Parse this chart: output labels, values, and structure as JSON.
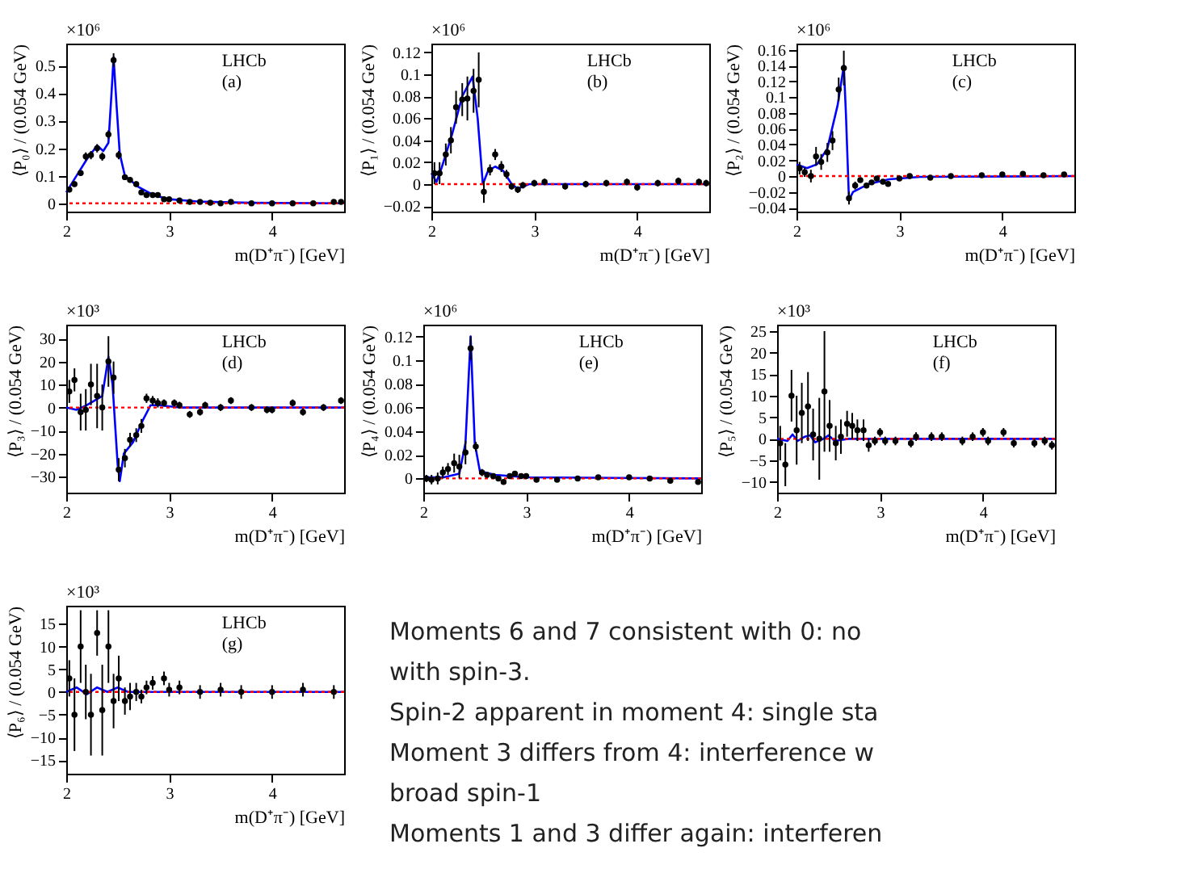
{
  "chart_data": [
    {
      "type": "scatter",
      "xlabel": "m(D⁺π⁻) [GeV]",
      "ylabel": "⟨P₀⟩ / (0.054 GeV)",
      "xlim": [
        2,
        4.7
      ],
      "xticks": [
        2,
        3,
        4
      ],
      "ylim": [
        -0.03,
        0.58
      ],
      "yticks": [
        0,
        0.1,
        0.2,
        0.3,
        0.4,
        0.5
      ],
      "annotations": [
        "×10⁶",
        "LHCb",
        "(a)"
      ],
      "ref_lines": [
        {
          "axis": "y",
          "value": 0,
          "color": "#ff0000",
          "line_style": "dotted"
        }
      ],
      "series": [
        {
          "type": "scatter",
          "marker": "circle",
          "color": "#000000",
          "x": [
            2.03,
            2.08,
            2.14,
            2.19,
            2.24,
            2.3,
            2.35,
            2.41,
            2.46,
            2.51,
            2.57,
            2.62,
            2.68,
            2.73,
            2.78,
            2.84,
            2.89,
            2.95,
            3.0,
            3.1,
            3.2,
            3.3,
            3.4,
            3.5,
            3.6,
            3.8,
            4.0,
            4.2,
            4.4,
            4.6,
            4.67
          ],
          "values": [
            0.05,
            0.07,
            0.11,
            0.17,
            0.175,
            0.2,
            0.17,
            0.25,
            0.52,
            0.175,
            0.095,
            0.085,
            0.07,
            0.04,
            0.03,
            0.03,
            0.03,
            0.015,
            0.015,
            0.01,
            0.005,
            0.005,
            0.002,
            0,
            0.005,
            0,
            0,
            0,
            0,
            0.005,
            0.005
          ],
          "errors": [
            0.01,
            0.01,
            0.01,
            0.015,
            0.015,
            0.015,
            0.015,
            0.015,
            0.025,
            0.015,
            0.01,
            0.01,
            0.01,
            0.01,
            0.005,
            0.005,
            0.005,
            0.005,
            0.005,
            0.005,
            0.005,
            0.005,
            0.005,
            0.005,
            0.005,
            0.005,
            0.005,
            0.005,
            0.005,
            0.005,
            0.005
          ]
        },
        {
          "type": "line",
          "color": "#0000ff",
          "x": [
            2.0,
            2.1,
            2.2,
            2.3,
            2.36,
            2.41,
            2.44,
            2.46,
            2.49,
            2.52,
            2.57,
            2.7,
            2.85,
            3.0,
            3.3,
            3.8,
            4.7
          ],
          "values": [
            0.04,
            0.1,
            0.16,
            0.21,
            0.19,
            0.22,
            0.4,
            0.53,
            0.35,
            0.18,
            0.1,
            0.06,
            0.03,
            0.015,
            0.006,
            0.002,
            0
          ]
        }
      ]
    },
    {
      "type": "scatter",
      "xlabel": "m(D⁺π⁻) [GeV]",
      "ylabel": "⟨P₁⟩ / (0.054 GeV)",
      "xlim": [
        2,
        4.7
      ],
      "xticks": [
        2,
        3,
        4
      ],
      "ylim": [
        -0.025,
        0.128
      ],
      "yticks": [
        -0.02,
        0,
        0.02,
        0.04,
        0.06,
        0.08,
        0.1,
        0.12
      ],
      "annotations": [
        "×10⁶",
        "LHCb",
        "(b)"
      ],
      "ref_lines": [
        {
          "axis": "y",
          "value": 0,
          "color": "#ff0000",
          "line_style": "dotted"
        }
      ],
      "series": [
        {
          "type": "scatter",
          "marker": "circle",
          "color": "#000000",
          "x": [
            2.03,
            2.08,
            2.14,
            2.19,
            2.24,
            2.3,
            2.35,
            2.41,
            2.46,
            2.51,
            2.57,
            2.62,
            2.68,
            2.73,
            2.78,
            2.84,
            2.89,
            3.0,
            3.1,
            3.3,
            3.5,
            3.7,
            3.9,
            4.0,
            4.2,
            4.4,
            4.6,
            4.67
          ],
          "values": [
            0.01,
            0.01,
            0.027,
            0.04,
            0.07,
            0.077,
            0.078,
            0.085,
            0.095,
            -0.007,
            0.013,
            0.027,
            0.016,
            0.009,
            -0.002,
            -0.005,
            -0.001,
            0.001,
            0.002,
            -0.002,
            0,
            0.001,
            0.002,
            -0.003,
            0.001,
            0.003,
            0.002,
            0.001
          ],
          "errors": [
            0.01,
            0.01,
            0.01,
            0.012,
            0.015,
            0.015,
            0.02,
            0.02,
            0.025,
            0.01,
            0.005,
            0.005,
            0.005,
            0.004,
            0.003,
            0.003,
            0.003,
            0.003,
            0.003,
            0.003,
            0.003,
            0.003,
            0.003,
            0.003,
            0.003,
            0.003,
            0.003,
            0.003
          ]
        },
        {
          "type": "line",
          "color": "#0000ff",
          "x": [
            2.0,
            2.05,
            2.1,
            2.2,
            2.3,
            2.4,
            2.45,
            2.5,
            2.55,
            2.62,
            2.7,
            2.78,
            2.84,
            2.95,
            4.7
          ],
          "values": [
            0.01,
            0.002,
            0.015,
            0.045,
            0.08,
            0.098,
            0.06,
            0,
            0.012,
            0.016,
            0.012,
            0,
            -0.004,
            0,
            0
          ]
        }
      ]
    },
    {
      "type": "scatter",
      "xlabel": "m(D⁺π⁻) [GeV]",
      "ylabel": "⟨P₂⟩ / (0.054 GeV)",
      "xlim": [
        2,
        4.7
      ],
      "xticks": [
        2,
        3,
        4
      ],
      "ylim": [
        -0.045,
        0.168
      ],
      "yticks": [
        -0.04,
        -0.02,
        0,
        0.02,
        0.04,
        0.06,
        0.08,
        0.1,
        0.12,
        0.14,
        0.16
      ],
      "annotations": [
        "×10⁶",
        "LHCb",
        "(c)"
      ],
      "ref_lines": [
        {
          "axis": "y",
          "value": 0,
          "color": "#ff0000",
          "line_style": "dotted"
        }
      ],
      "series": [
        {
          "type": "scatter",
          "marker": "circle",
          "color": "#000000",
          "x": [
            2.03,
            2.08,
            2.14,
            2.19,
            2.24,
            2.3,
            2.35,
            2.41,
            2.46,
            2.51,
            2.57,
            2.62,
            2.68,
            2.73,
            2.78,
            2.84,
            2.89,
            3.0,
            3.1,
            3.3,
            3.5,
            3.8,
            4.0,
            4.2,
            4.4,
            4.6
          ],
          "values": [
            0.01,
            0.005,
            0,
            0.025,
            0.018,
            0.03,
            0.045,
            0.11,
            0.137,
            -0.028,
            -0.012,
            -0.005,
            -0.012,
            -0.008,
            -0.003,
            -0.007,
            -0.01,
            -0.003,
            0,
            -0.002,
            0,
            0.001,
            0.002,
            0.003,
            0.001,
            0.002
          ],
          "errors": [
            0.008,
            0.006,
            0.008,
            0.012,
            0.01,
            0.012,
            0.012,
            0.015,
            0.022,
            0.008,
            0.005,
            0.003,
            0.003,
            0.003,
            0.003,
            0.003,
            0.003,
            0.003,
            0.003,
            0.003,
            0.003,
            0.003,
            0.003,
            0.003,
            0.003,
            0.003
          ]
        },
        {
          "type": "line",
          "color": "#0000ff",
          "x": [
            2.0,
            2.1,
            2.2,
            2.3,
            2.4,
            2.46,
            2.48,
            2.51,
            2.55,
            2.7,
            2.9,
            3.2,
            4.7
          ],
          "values": [
            0.015,
            0.01,
            0.015,
            0.035,
            0.09,
            0.14,
            0.08,
            -0.03,
            -0.02,
            -0.01,
            -0.004,
            -0.001,
            0
          ]
        }
      ]
    },
    {
      "type": "scatter",
      "xlabel": "m(D⁺π⁻) [GeV]",
      "ylabel": "⟨P₃⟩ / (0.054 GeV)",
      "xlim": [
        2,
        4.7
      ],
      "xticks": [
        2,
        3,
        4
      ],
      "ylim": [
        -37,
        36
      ],
      "yticks": [
        -30,
        -20,
        -10,
        0,
        10,
        20,
        30
      ],
      "annotations": [
        "×10³",
        "LHCb",
        "(d)"
      ],
      "ref_lines": [
        {
          "axis": "y",
          "value": 0,
          "color": "#ff0000",
          "line_style": "dotted"
        }
      ],
      "series": [
        {
          "type": "scatter",
          "marker": "circle",
          "color": "#000000",
          "x": [
            2.03,
            2.08,
            2.14,
            2.19,
            2.24,
            2.3,
            2.35,
            2.41,
            2.46,
            2.51,
            2.57,
            2.62,
            2.68,
            2.73,
            2.78,
            2.84,
            2.89,
            2.95,
            3.05,
            3.1,
            3.2,
            3.3,
            3.35,
            3.5,
            3.6,
            3.8,
            3.95,
            4.0,
            4.2,
            4.3,
            4.5,
            4.67
          ],
          "values": [
            7,
            12,
            -2,
            -1,
            10,
            5,
            0,
            20,
            13,
            -27,
            -22,
            -14,
            -12,
            -8,
            4,
            3,
            2,
            2,
            2,
            1,
            -3,
            -2,
            1,
            0,
            3,
            0,
            -1,
            -1,
            2,
            -2,
            0,
            3
          ],
          "errors": [
            5,
            5,
            8,
            9,
            9,
            14,
            10,
            11,
            7,
            5,
            4,
            3,
            3,
            3,
            2,
            2,
            2,
            1.5,
            1.5,
            1.5,
            1.5,
            1.5,
            1.5,
            1.5,
            1.5,
            1.5,
            1.5,
            1.5,
            1.5,
            1.5,
            1.5,
            1.5
          ]
        },
        {
          "type": "line",
          "color": "#0000ff",
          "x": [
            2.0,
            2.1,
            2.2,
            2.35,
            2.41,
            2.45,
            2.5,
            2.52,
            2.56,
            2.65,
            2.75,
            2.82,
            2.9,
            3.1,
            4.7
          ],
          "values": [
            0,
            -1,
            1,
            5,
            22,
            10,
            -25,
            -32,
            -20,
            -15,
            -5,
            1,
            1,
            0,
            0
          ]
        }
      ]
    },
    {
      "type": "scatter",
      "xlabel": "m(D⁺π⁻) [GeV]",
      "ylabel": "⟨P₄⟩ / (0.054 GeV)",
      "xlim": [
        2,
        4.7
      ],
      "xticks": [
        2,
        3,
        4
      ],
      "ylim": [
        -0.012,
        0.13
      ],
      "yticks": [
        0,
        0.02,
        0.04,
        0.06,
        0.08,
        0.1,
        0.12
      ],
      "annotations": [
        "×10⁶",
        "LHCb",
        "(e)"
      ],
      "ref_lines": [
        {
          "axis": "y",
          "value": 0,
          "color": "#ff0000",
          "line_style": "dotted"
        }
      ],
      "series": [
        {
          "type": "scatter",
          "marker": "circle",
          "color": "#000000",
          "x": [
            2.03,
            2.08,
            2.14,
            2.19,
            2.24,
            2.3,
            2.35,
            2.41,
            2.46,
            2.51,
            2.57,
            2.62,
            2.68,
            2.73,
            2.78,
            2.84,
            2.89,
            2.95,
            3.0,
            3.1,
            3.3,
            3.5,
            3.7,
            4.0,
            4.2,
            4.4,
            4.67
          ],
          "values": [
            0,
            -0.001,
            0,
            0.005,
            0.008,
            0.013,
            0.01,
            0.022,
            0.11,
            0.027,
            0.005,
            0.003,
            0.002,
            0,
            -0.003,
            0.002,
            0.004,
            0.002,
            0.002,
            -0.001,
            -0.001,
            0,
            0.001,
            0.001,
            0,
            -0.002,
            -0.003
          ],
          "errors": [
            0.003,
            0.004,
            0.005,
            0.005,
            0.005,
            0.008,
            0.01,
            0.01,
            0.01,
            0.004,
            0.003,
            0.002,
            0.002,
            0.002,
            0.002,
            0.002,
            0.002,
            0.002,
            0.002,
            0.002,
            0.002,
            0.002,
            0.002,
            0.002,
            0.002,
            0.002,
            0.002
          ]
        },
        {
          "type": "line",
          "color": "#0000ff",
          "x": [
            2.0,
            2.2,
            2.35,
            2.41,
            2.46,
            2.5,
            2.55,
            2.7,
            3.0,
            4.7
          ],
          "values": [
            0.001,
            0.001,
            0.004,
            0.03,
            0.12,
            0.03,
            0.006,
            0.003,
            0.001,
            0
          ]
        }
      ]
    },
    {
      "type": "scatter",
      "xlabel": "m(D⁺π⁻) [GeV]",
      "ylabel": "⟨P₅⟩ / (0.054 GeV)",
      "xlim": [
        2,
        4.7
      ],
      "xticks": [
        2,
        3,
        4
      ],
      "ylim": [
        -12.5,
        26.5
      ],
      "yticks": [
        -10,
        -5,
        0,
        5,
        10,
        15,
        20,
        25
      ],
      "annotations": [
        "×10³",
        "LHCb",
        "(f)"
      ],
      "ref_lines": [
        {
          "axis": "y",
          "value": 0,
          "color": "#ff0000",
          "line_style": "dotted"
        }
      ],
      "series": [
        {
          "type": "scatter",
          "marker": "circle",
          "color": "#000000",
          "x": [
            2.03,
            2.08,
            2.14,
            2.19,
            2.24,
            2.3,
            2.35,
            2.41,
            2.46,
            2.51,
            2.57,
            2.62,
            2.68,
            2.73,
            2.78,
            2.84,
            2.89,
            2.95,
            3.0,
            3.05,
            3.15,
            3.3,
            3.35,
            3.5,
            3.6,
            3.8,
            3.9,
            4.0,
            4.05,
            4.2,
            4.3,
            4.5,
            4.6,
            4.67
          ],
          "values": [
            -1,
            -6,
            10,
            2,
            6,
            7.5,
            1,
            0,
            11,
            3,
            -1,
            0.5,
            3.5,
            3,
            2,
            2,
            -1.5,
            -0.5,
            1.5,
            -0.5,
            -0.5,
            -1,
            0.5,
            0.5,
            0.5,
            -0.5,
            0.5,
            1.5,
            -0.5,
            1.5,
            -1,
            -1,
            -0.5,
            -1.5
          ],
          "errors": [
            4,
            5,
            6,
            8,
            7,
            8,
            6,
            9.5,
            14,
            6,
            4,
            4,
            3,
            3,
            2.5,
            2.5,
            1.5,
            1,
            1,
            1,
            1,
            1,
            1,
            1,
            1,
            1,
            1,
            1,
            1,
            1,
            1,
            1,
            1,
            1
          ]
        },
        {
          "type": "line",
          "color": "#0000ff",
          "x": [
            2.0,
            2.1,
            2.15,
            2.2,
            2.27,
            2.32,
            2.37,
            2.45,
            2.5,
            2.56,
            2.7,
            4.7
          ],
          "values": [
            0,
            -0.5,
            1,
            -0.5,
            0.5,
            0.8,
            -0.8,
            0,
            0.8,
            -0.5,
            0,
            0
          ]
        }
      ]
    },
    {
      "type": "scatter",
      "xlabel": "m(D⁺π⁻) [GeV]",
      "ylabel": "⟨P₆⟩ / (0.054 GeV)",
      "xlim": [
        2,
        4.7
      ],
      "xticks": [
        2,
        3,
        4
      ],
      "ylim": [
        -18,
        19
      ],
      "yticks": [
        -15,
        -10,
        -5,
        0,
        5,
        10,
        15
      ],
      "annotations": [
        "×10³",
        "LHCb",
        "(g)"
      ],
      "ref_lines": [
        {
          "axis": "y",
          "value": 0,
          "color": "#ff0000",
          "line_style": "dotted"
        }
      ],
      "series": [
        {
          "type": "scatter",
          "marker": "circle",
          "color": "#000000",
          "x": [
            2.03,
            2.08,
            2.14,
            2.19,
            2.24,
            2.3,
            2.35,
            2.41,
            2.46,
            2.51,
            2.57,
            2.62,
            2.68,
            2.73,
            2.78,
            2.84,
            2.95,
            3.0,
            3.1,
            3.3,
            3.5,
            3.7,
            4.0,
            4.3,
            4.6
          ],
          "values": [
            3,
            -5,
            10,
            0,
            -5,
            13,
            -4,
            10,
            -2,
            3,
            -2,
            -1,
            0,
            -1,
            1,
            2,
            3,
            0.5,
            1,
            0,
            0.5,
            0,
            0,
            0.5,
            0
          ],
          "errors": [
            4,
            8,
            8,
            6,
            9,
            5,
            10,
            8,
            6,
            5,
            3,
            3,
            2,
            1.5,
            1.5,
            1.5,
            1.5,
            1.5,
            1.5,
            1.5,
            1.5,
            1.5,
            1.5,
            1.5,
            1.5
          ]
        },
        {
          "type": "line",
          "color": "#0000ff",
          "x": [
            2.0,
            2.1,
            2.2,
            2.3,
            2.4,
            2.5,
            2.6,
            4.7
          ],
          "values": [
            0,
            1,
            -0.5,
            1,
            0,
            1,
            0,
            0
          ]
        }
      ]
    },
    {
      "type": "other",
      "annotations": [
        "Moments 6 and 7 consistent with 0: no",
        "with spin-3.",
        "Spin-2 apparent in moment 4: single sta",
        "Moment 3 differs from 4: interference w",
        "broad spin-1",
        "Moments 1 and 3 differ again: interferen"
      ]
    }
  ]
}
